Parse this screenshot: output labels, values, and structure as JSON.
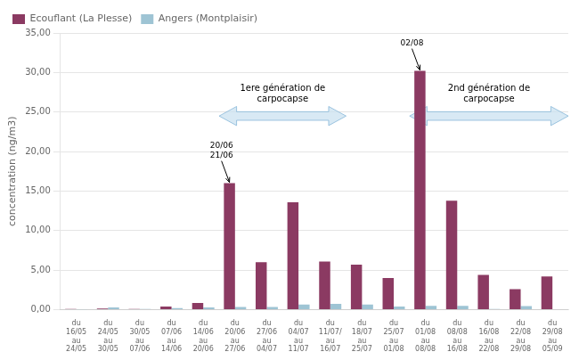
{
  "chart_data": {
    "type": "bar",
    "categories": [
      "du\n16/05\nau\n24/05",
      "du\n24/05\nau\n30/05",
      "du\n30/05\nau\n07/06",
      "du\n07/06\nau\n14/06",
      "du\n14/06\nau\n20/06",
      "du\n20/06\nau\n27/06",
      "du\n27/06\nau\n04/07",
      "du\n04/07\nau\n11/07",
      "du\n11/07/\nau\n16/07",
      "du\n18/07\nau\n25/07",
      "du\n25/07\nau\n01/08",
      "du\n01/08\nau\n08/08",
      "du\n08/08\nau\n16/08",
      "du\n16/08\nau\n22/08",
      "du\n22/08\nau\n29/08",
      "du\n29/08\nau\n05/09"
    ],
    "series": [
      {
        "name": "Ecouflant (La Plesse)",
        "color": "#8B3A62",
        "values": [
          0.1,
          0.15,
          0.1,
          0.4,
          0.85,
          16.0,
          6.0,
          13.6,
          6.1,
          5.7,
          4.0,
          30.2,
          13.8,
          4.4,
          2.6,
          4.2
        ]
      },
      {
        "name": "Angers (Montplaisir)",
        "color": "#9EC4D4",
        "values": [
          0.05,
          0.3,
          0.1,
          0.2,
          0.3,
          0.35,
          0.35,
          0.65,
          0.75,
          0.65,
          0.4,
          0.5,
          0.5,
          0.1,
          0.45,
          0.0
        ]
      }
    ],
    "ylabel": "concentration (ng/m3)",
    "ylim": [
      0,
      35
    ],
    "yticks": [
      {
        "value": 0,
        "label": "0,00"
      },
      {
        "value": 5.0,
        "label": "5,00"
      },
      {
        "value": 10.0,
        "label": "10,00"
      },
      {
        "value": 15.0,
        "label": "15,00"
      },
      {
        "value": 20.0,
        "label": "20,00"
      },
      {
        "value": 25.0,
        "label": "25,00"
      },
      {
        "value": 30.0,
        "label": "30,00"
      },
      {
        "value": 35.0,
        "label": "35,00"
      }
    ],
    "grid": true,
    "legend": "upper left",
    "annotations": [
      {
        "type": "span",
        "text": "1ere génération de\ncarpocapse",
        "from": "du\n20/06\nau\n27/06",
        "to": "du\n11/07/\nau\n16/07",
        "color": "#C8DFF0"
      },
      {
        "type": "span",
        "text": "2nd génération de\ncarpocapse",
        "from": "du\n01/08\nau\n08/08",
        "to": "du\n29/08\nau\n05/09",
        "color": "#C8DFF0"
      },
      {
        "type": "arrow",
        "text": "20/06\n21/06",
        "category": "du\n20/06\nau\n27/06",
        "series": "Ecouflant (La Plesse)"
      },
      {
        "type": "arrow",
        "text": "02/08",
        "category": "du\n01/08\nau\n08/08",
        "series": "Ecouflant (La Plesse)"
      }
    ]
  }
}
